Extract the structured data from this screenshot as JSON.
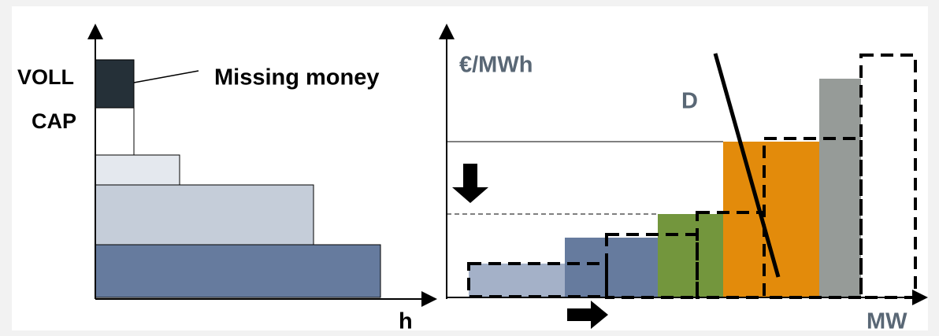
{
  "left_panel": {
    "labels": {
      "voll": "VOLL",
      "cap": "CAP",
      "missing_money": "Missing money",
      "x_axis": "h"
    }
  },
  "right_panel": {
    "labels": {
      "y_axis": "€/MWh",
      "demand": "D",
      "x_axis": "MW"
    }
  }
}
